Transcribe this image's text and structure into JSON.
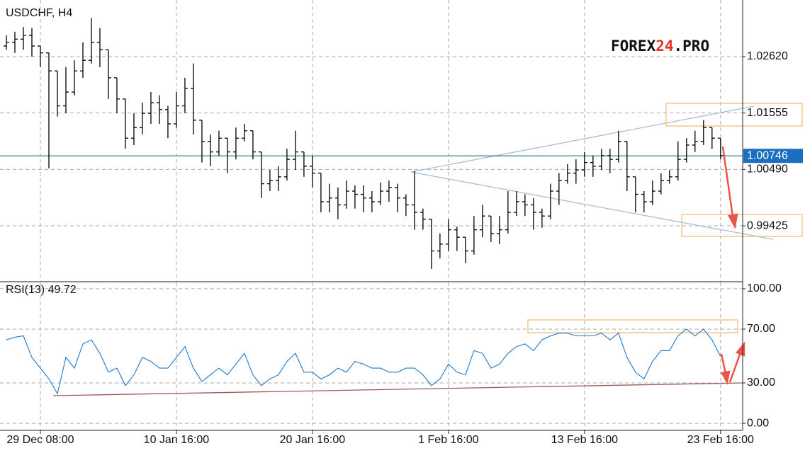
{
  "chart_data": [
    {
      "type": "ohlc",
      "title": "USDCHF, H4",
      "watermark": [
        "FOREX",
        "24",
        ".PRO"
      ],
      "color": "#000000",
      "open": [
        1.0282,
        1.0289,
        1.0295,
        1.0302,
        1.0282,
        1.0269,
        1.0235,
        1.0169,
        1.0195,
        1.0235,
        1.0255,
        1.0289,
        1.0275,
        1.0222,
        1.0182,
        1.0108,
        1.0128,
        1.0155,
        1.0175,
        1.0162,
        1.0135,
        1.0169,
        1.0202,
        1.0142,
        1.0102,
        1.0082,
        1.0108,
        1.0082,
        1.0108,
        1.0122,
        1.0082,
        1.0022,
        1.0028,
        1.0035,
        1.0068,
        1.0082,
        1.0055,
        1.0042,
        0.9988,
        0.9995,
        0.9982,
        1.0008,
        1.0002,
        0.9995,
        0.9988,
        1.0008,
        1.0015,
        0.9995,
        0.9982,
        0.9968,
        0.9955,
        0.9895,
        0.9908,
        0.9935,
        0.9921,
        0.9895,
        0.9935,
        0.9961,
        0.9928,
        0.9935,
        0.9968,
        0.9988,
        0.9982,
        0.9968,
        0.9961,
        1.0008,
        1.0028,
        1.0042,
        1.0048,
        1.0062,
        1.0055,
        1.0075,
        1.0068,
        1.0102,
        1.0035,
        1.0002,
        0.9988,
        1.0008,
        1.0028,
        1.0035,
        1.0068,
        1.0095,
        1.0102,
        1.0128,
        1.0108
      ],
      "high": [
        1.0302,
        1.0309,
        1.0318,
        1.0316,
        1.0282,
        1.0269,
        1.0235,
        1.0242,
        1.0255,
        1.0289,
        1.0335,
        1.0316,
        1.0275,
        1.0222,
        1.0182,
        1.0155,
        1.0175,
        1.0195,
        1.0189,
        1.0169,
        1.0195,
        1.0222,
        1.0249,
        1.0142,
        1.0115,
        1.0122,
        1.0108,
        1.0128,
        1.0135,
        1.0122,
        1.0082,
        1.0048,
        1.0055,
        1.0088,
        1.0122,
        1.0082,
        1.0075,
        1.0042,
        1.0022,
        1.0015,
        1.0028,
        1.0019,
        1.0019,
        1.0008,
        1.0024,
        1.0028,
        1.0022,
        1.0002,
        1.0046,
        0.9975,
        0.9955,
        0.9928,
        0.9955,
        0.9941,
        0.9921,
        0.9961,
        0.9982,
        0.9961,
        0.9961,
        1.0008,
        1.0008,
        1.0002,
        0.9995,
        0.9975,
        1.0022,
        1.0042,
        1.0059,
        1.0068,
        1.0082,
        1.0075,
        1.0088,
        1.0088,
        1.0122,
        1.0102,
        1.0035,
        1.0008,
        1.0028,
        1.0042,
        1.0048,
        1.0102,
        1.0108,
        1.0122,
        1.0142,
        1.0128,
        1.0108
      ],
      "low": [
        1.0275,
        1.0269,
        1.0275,
        1.0262,
        1.0242,
        1.0051,
        1.0149,
        1.0155,
        1.0189,
        1.0222,
        1.0249,
        1.0242,
        1.0182,
        1.0155,
        1.0088,
        1.0095,
        1.0115,
        1.0135,
        1.0135,
        1.0108,
        1.0128,
        1.0155,
        1.0115,
        1.0062,
        1.0055,
        1.0075,
        1.0042,
        1.0068,
        1.0102,
        1.0068,
        0.9995,
        1.0008,
        1.0008,
        1.0028,
        1.0048,
        1.0035,
        1.0015,
        0.9968,
        0.9968,
        0.9955,
        0.9975,
        0.9975,
        0.9968,
        0.9968,
        0.9982,
        0.9988,
        0.9968,
        0.9961,
        0.9935,
        0.9935,
        0.9861,
        0.9881,
        0.9895,
        0.9895,
        0.9872,
        0.9888,
        0.9921,
        0.9912,
        0.9908,
        0.9928,
        0.9961,
        0.9961,
        0.9935,
        0.9939,
        0.9955,
        0.9982,
        1.0022,
        1.0022,
        1.0035,
        1.0035,
        1.0048,
        1.0042,
        1.0062,
        1.0008,
        0.9968,
        0.9968,
        0.9982,
        1.0002,
        1.0022,
        1.0028,
        1.0062,
        1.0082,
        1.0095,
        1.0088,
        1.0068
      ],
      "close": [
        1.0289,
        1.0295,
        1.0302,
        1.0282,
        1.0269,
        1.0235,
        1.0169,
        1.0195,
        1.0235,
        1.0255,
        1.0289,
        1.0275,
        1.0222,
        1.0182,
        1.0108,
        1.0128,
        1.0155,
        1.0175,
        1.0162,
        1.0135,
        1.0169,
        1.0202,
        1.0142,
        1.0102,
        1.0082,
        1.0108,
        1.0082,
        1.0108,
        1.0122,
        1.0082,
        1.0022,
        1.0028,
        1.0035,
        1.0068,
        1.0082,
        1.0055,
        1.0042,
        0.9988,
        0.9995,
        0.9982,
        1.0008,
        1.0002,
        0.9995,
        0.9988,
        1.0008,
        1.0015,
        0.9995,
        0.9982,
        0.9968,
        0.9955,
        0.9895,
        0.9908,
        0.9935,
        0.9921,
        0.9895,
        0.9935,
        0.9961,
        0.9928,
        0.9935,
        0.9968,
        0.9988,
        0.9982,
        0.9968,
        0.9961,
        1.0008,
        1.0028,
        1.0042,
        1.0048,
        1.0062,
        1.0055,
        1.0075,
        1.0068,
        1.0102,
        1.0035,
        1.0002,
        0.9988,
        1.0008,
        1.0028,
        1.0035,
        1.0068,
        1.0095,
        1.0102,
        1.0128,
        1.0108,
        1.0075
      ],
      "xlim": [
        -0.75,
        86.6
      ],
      "ylim": [
        0.98383,
        1.03689
      ],
      "yticks": [
        {
          "value": 1.0262,
          "label": "1.02620"
        },
        {
          "value": 1.01555,
          "label": "1.01555"
        },
        {
          "value": 1.0049,
          "label": "1.00490"
        },
        {
          "value": 0.99425,
          "label": "0.99425"
        }
      ],
      "grid": true,
      "last_price": {
        "value": 1.00746,
        "label": "1.00746"
      },
      "last_price_color": "#1a7a6e"
    },
    {
      "type": "line",
      "title": "RSI(13) 49.72",
      "color": "#1f78d1",
      "values": [
        62,
        64,
        65,
        49,
        41,
        33,
        22,
        49,
        41,
        59,
        62,
        52,
        38,
        41,
        28,
        36,
        49,
        46,
        41,
        41,
        49,
        57,
        41,
        31,
        36,
        41,
        36,
        44,
        52,
        36,
        28,
        33,
        36,
        46,
        52,
        38,
        38,
        33,
        36,
        41,
        38,
        46,
        44,
        41,
        41,
        38,
        38,
        41,
        41,
        36,
        28,
        33,
        44,
        38,
        36,
        54,
        52,
        41,
        44,
        52,
        57,
        59,
        54,
        62,
        65,
        67,
        67,
        65,
        65,
        65,
        67,
        62,
        67,
        49,
        38,
        33,
        46,
        54,
        54,
        65,
        70,
        65,
        70,
        62,
        49.72
      ],
      "xlim": [
        -0.75,
        86.6
      ],
      "ylim": [
        -4.7,
        104.7
      ],
      "yticks": [
        {
          "value": 100,
          "label": "100.00"
        },
        {
          "value": 70,
          "label": "70.00"
        },
        {
          "value": 30,
          "label": "30.00"
        },
        {
          "value": 0,
          "label": "0.00"
        }
      ],
      "xticks": [
        {
          "value": 4,
          "label": "29 Dec 08:00"
        },
        {
          "value": 20,
          "label": "10 Jan 16:00"
        },
        {
          "value": 36,
          "label": "20 Jan 16:00"
        },
        {
          "value": 52,
          "label": "1 Feb 16:00"
        },
        {
          "value": 68,
          "label": "13 Feb 16:00"
        },
        {
          "value": 84,
          "label": "23 Feb 16:00"
        }
      ],
      "grid": true
    }
  ]
}
